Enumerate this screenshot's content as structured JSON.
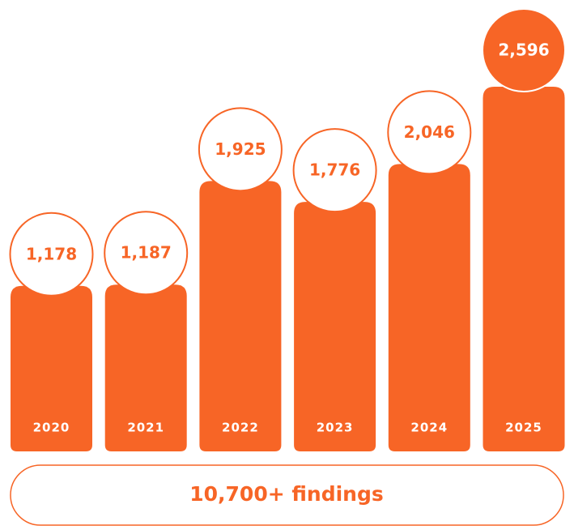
{
  "chart_data": {
    "type": "bar",
    "categories": [
      "2020",
      "2021",
      "2022",
      "2023",
      "2024",
      "2025"
    ],
    "values": [
      1178,
      1187,
      1925,
      1776,
      2046,
      2596
    ],
    "value_labels": [
      "1,178",
      "1,187",
      "1,925",
      "1,776",
      "2,046",
      "2,596"
    ],
    "color": "#f76526",
    "annotation": "10,700+ findings"
  }
}
